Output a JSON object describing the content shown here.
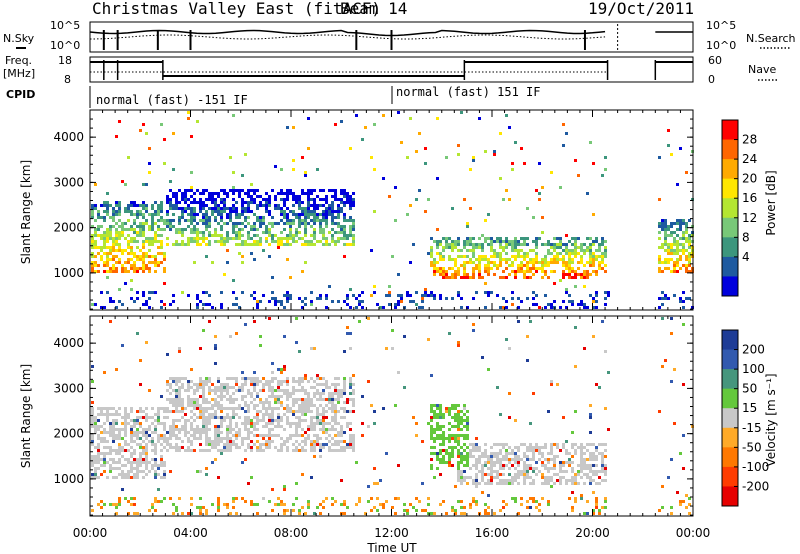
{
  "header": {
    "title": "Christmas Valley East (fitACF)",
    "beam": "Beam 14",
    "date": "19/Oct/2011"
  },
  "top_panels": {
    "nsky_label": "N.Sky",
    "nsky_ticks": [
      "10^5",
      "10^0"
    ],
    "nsearch_label": "N.Search",
    "nsearch_ticks": [
      "10^5",
      "10^0"
    ],
    "freq_label": "Freq.",
    "freq_unit": "[MHz]",
    "freq_ticks": [
      "18",
      "8"
    ],
    "nave_label": "Nave",
    "nave_ticks": [
      "60",
      "0"
    ],
    "cpid_label": "CPID",
    "cpid_segments": [
      "normal (fast) -151 IF",
      "normal (fast) 151 IF"
    ]
  },
  "chart_data": [
    {
      "type": "heatmap",
      "title": "",
      "xlabel": "Time UT",
      "ylabel": "Slant Range [km]",
      "x_ticks": [
        "00:00",
        "04:00",
        "08:00",
        "12:00",
        "16:00",
        "20:00",
        "00:00"
      ],
      "y_ticks": [
        1000,
        2000,
        3000,
        4000
      ],
      "xlim": [
        0,
        24
      ],
      "ylim": [
        180,
        4600
      ],
      "colorbar": {
        "label": "Power [dB]",
        "ticks": [
          "28",
          "24",
          "20",
          "16",
          "12",
          "8",
          "4"
        ],
        "colors": [
          "#ff0000",
          "#ff6600",
          "#ffaa00",
          "#ffe600",
          "#b4e632",
          "#78c878",
          "#3c967d",
          "#1e5aa0",
          "#0000dc"
        ]
      },
      "data_gaps_hours": [
        [
          20.6,
          22.5
        ]
      ],
      "features": [
        {
          "t": [
            0.0,
            3.0
          ],
          "range_km": [
            1000,
            2600
          ],
          "level_db": 24
        },
        {
          "t": [
            3.0,
            10.5
          ],
          "range_km": [
            1600,
            2900
          ],
          "level_db": 16
        },
        {
          "t": [
            13.5,
            20.5
          ],
          "range_km": [
            900,
            1800
          ],
          "level_db": 26
        },
        {
          "t": [
            22.5,
            24.0
          ],
          "range_km": [
            1000,
            2200
          ],
          "level_db": 24
        }
      ]
    },
    {
      "type": "heatmap",
      "title": "",
      "xlabel": "Time UT",
      "ylabel": "Slant Range [km]",
      "x_ticks": [
        "00:00",
        "04:00",
        "08:00",
        "12:00",
        "16:00",
        "20:00",
        "00:00"
      ],
      "y_ticks": [
        1000,
        2000,
        3000,
        4000
      ],
      "xlim": [
        0,
        24
      ],
      "ylim": [
        180,
        4600
      ],
      "colorbar": {
        "label": "Velocity [m s⁻¹]",
        "ticks": [
          "200",
          "100",
          "50",
          "15",
          "-15",
          "-50",
          "-100",
          "-200"
        ],
        "colors": [
          "#1e3c96",
          "#325aaf",
          "#46967d",
          "#64c83c",
          "#c8c8c8",
          "#ffaa28",
          "#ff7800",
          "#ff3c00",
          "#e60000"
        ]
      },
      "data_gaps_hours": [
        [
          20.6,
          22.5
        ]
      ],
      "features": [
        {
          "t": [
            0.0,
            3.0
          ],
          "range_km": [
            1000,
            2600
          ],
          "velocity_ms": 0
        },
        {
          "t": [
            3.0,
            10.5
          ],
          "range_km": [
            1600,
            3300
          ],
          "velocity_ms": 0
        },
        {
          "t": [
            13.5,
            15.0
          ],
          "range_km": [
            1200,
            2700
          ],
          "velocity_ms": 35
        },
        {
          "t": [
            14.5,
            20.5
          ],
          "range_km": [
            900,
            1800
          ],
          "velocity_ms": 0
        }
      ]
    }
  ]
}
